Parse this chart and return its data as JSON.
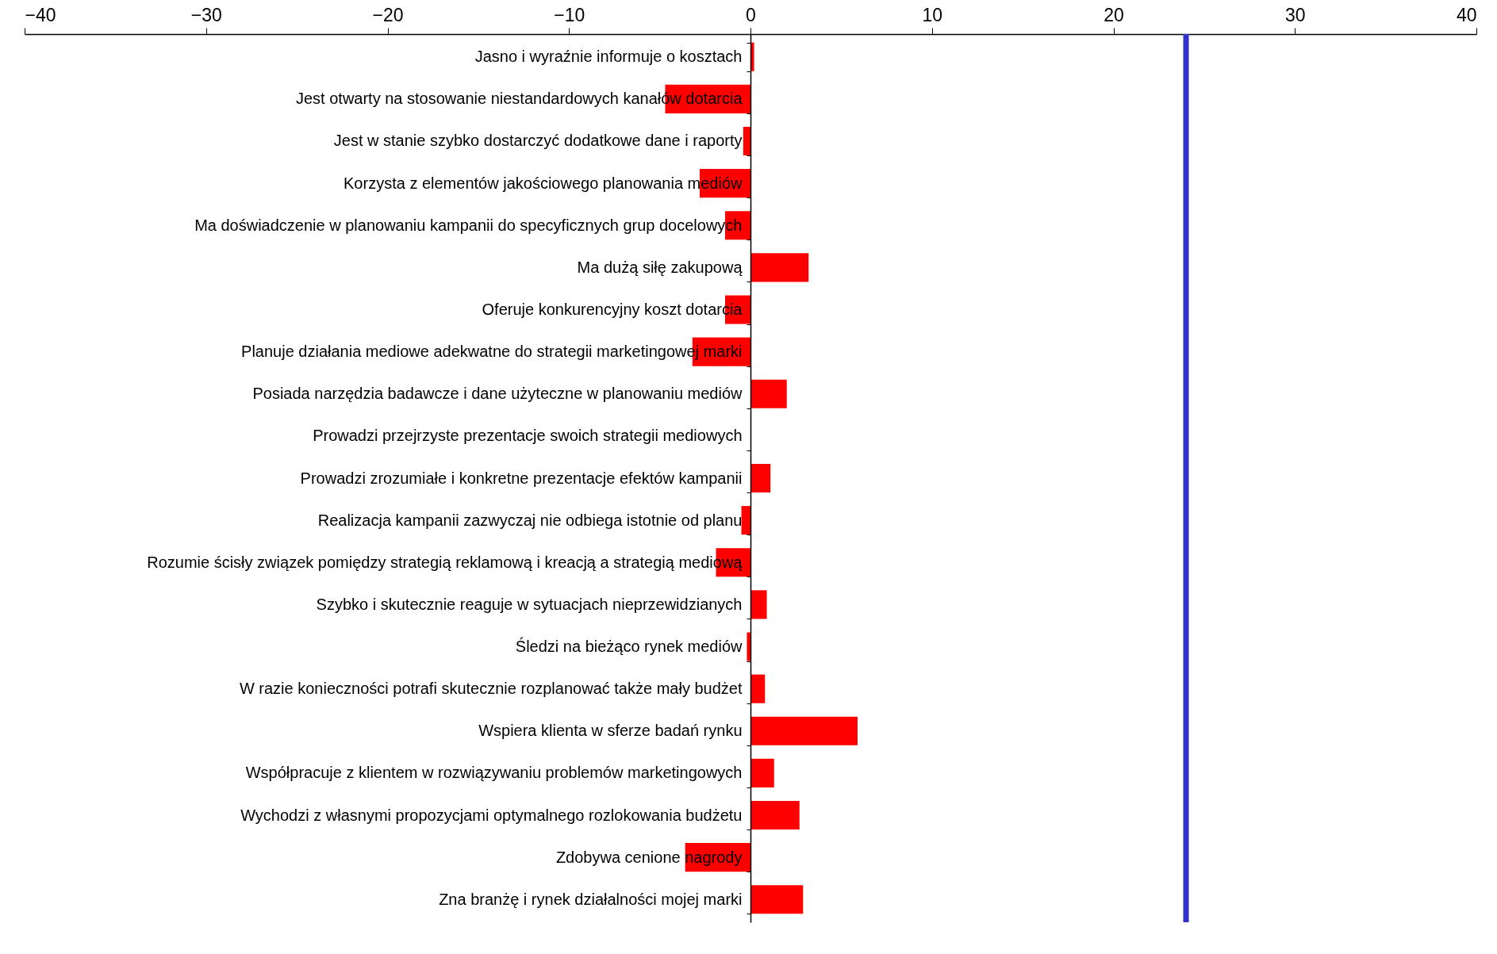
{
  "chart_data": {
    "type": "bar",
    "orientation": "horizontal",
    "categories": [
      "Jasno i wyraźnie informuje o kosztach",
      "Jest otwarty na stosowanie niestandardowych kanałów dotarcia",
      "Jest w stanie szybko dostarczyć dodatkowe dane i raporty",
      "Korzysta z elementów jakościowego planowania mediów",
      "Ma doświadczenie w planowaniu kampanii do specyficznych grup docelowych",
      "Ma dużą siłę zakupową",
      "Oferuje konkurencyjny koszt dotarcia",
      "Planuje działania mediowe adekwatne do strategii marketingowej marki",
      "Posiada narzędzia badawcze i dane użyteczne w planowaniu mediów",
      "Prowadzi przejrzyste prezentacje swoich strategii mediowych",
      "Prowadzi zrozumiałe i konkretne prezentacje efektów kampanii",
      "Realizacja kampanii zazwyczaj nie odbiega istotnie od planu",
      "Rozumie ścisły związek pomiędzy strategią reklamową i kreacją a strategią mediową",
      "Szybko i skutecznie reaguje w sytuacjach nieprzewidzianych",
      "Śledzi na bieżąco rynek mediów",
      "W razie konieczności potrafi skutecznie rozplanować także mały budżet",
      "Wspiera klienta w sferze badań rynku",
      "Współpracuje z klientem w rozwiązywaniu problemów marketingowych",
      "Wychodzi z własnymi propozycjami optymalnego rozlokowania budżetu",
      "Zdobywa cenione nagrody",
      "Zna branżę i rynek działalności mojej marki"
    ],
    "values": [
      0.2,
      -4.7,
      -0.4,
      -2.8,
      -1.4,
      3.2,
      -1.4,
      -3.2,
      2.0,
      0,
      1.1,
      -0.5,
      -1.9,
      0.9,
      -0.2,
      0.8,
      5.9,
      1.3,
      2.7,
      -3.6,
      2.9
    ],
    "color": "#ff0000",
    "xlim": [
      -40,
      40
    ],
    "xticks": [
      -40,
      -30,
      -20,
      -10,
      0,
      10,
      20,
      30,
      40
    ],
    "grid": false,
    "ref_lines": [
      {
        "axis": "x",
        "value": 24,
        "color": "#3333cc"
      }
    ]
  }
}
